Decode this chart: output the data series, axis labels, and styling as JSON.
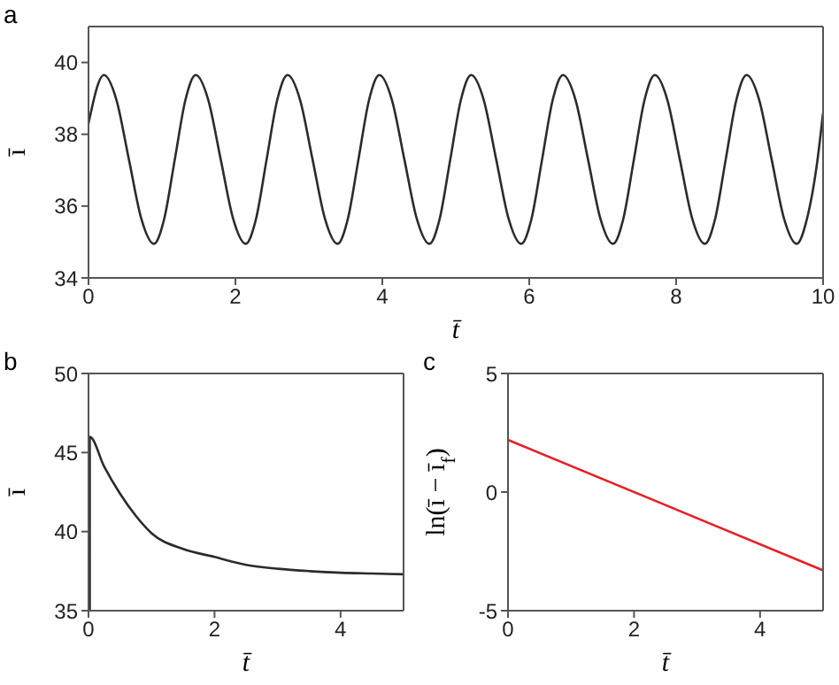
{
  "chart_data": [
    {
      "type": "line",
      "title": "a",
      "xlabel": "t̄",
      "ylabel": "ī",
      "xlim": [
        0,
        10
      ],
      "ylim": [
        34,
        41
      ],
      "xticks": [
        0,
        2,
        4,
        6,
        8,
        10
      ],
      "yticks": [
        34,
        36,
        38,
        40
      ],
      "grid": false,
      "legend": false,
      "marker": "none",
      "line_style": "solid",
      "series": [
        {
          "color": "#2b2b2b",
          "x": [
            0,
            0.21,
            0.38,
            0.55,
            0.72,
            0.89,
            1.03,
            1.175,
            1.32,
            1.46,
            1.63,
            1.8,
            1.97,
            2.14,
            2.28,
            2.425,
            2.57,
            2.71,
            2.88,
            3.05,
            3.22,
            3.39,
            3.53,
            3.675,
            3.82,
            3.96,
            4.13,
            4.3,
            4.47,
            4.64,
            4.78,
            4.925,
            5.07,
            5.21,
            5.38,
            5.55,
            5.72,
            5.89,
            6.03,
            6.175,
            6.32,
            6.46,
            6.63,
            6.8,
            6.97,
            7.14,
            7.28,
            7.425,
            7.57,
            7.71,
            7.88,
            8.05,
            8.22,
            8.39,
            8.53,
            8.675,
            8.82,
            8.96,
            9.13,
            9.3,
            9.47,
            9.64,
            9.78,
            9.925,
            10
          ],
          "values": [
            38.3,
            39.65,
            38.96,
            37.3,
            35.64,
            34.95,
            35.64,
            37.3,
            38.96,
            39.65,
            38.96,
            37.3,
            35.64,
            34.95,
            35.64,
            37.3,
            38.96,
            39.65,
            38.96,
            37.3,
            35.64,
            34.95,
            35.64,
            37.3,
            38.96,
            39.65,
            38.96,
            37.3,
            35.64,
            34.95,
            35.64,
            37.3,
            38.96,
            39.65,
            38.96,
            37.3,
            35.64,
            34.95,
            35.64,
            37.3,
            38.96,
            39.65,
            38.96,
            37.3,
            35.64,
            34.95,
            35.64,
            37.3,
            38.96,
            39.65,
            38.96,
            37.3,
            35.64,
            34.95,
            35.64,
            37.3,
            38.96,
            39.65,
            38.96,
            37.3,
            35.64,
            34.95,
            35.64,
            37.3,
            38.6
          ]
        }
      ]
    },
    {
      "type": "line",
      "title": "b",
      "xlabel": "t̄",
      "ylabel": "ī",
      "xlim": [
        0,
        5
      ],
      "ylim": [
        35,
        50
      ],
      "xticks": [
        0,
        2,
        4
      ],
      "yticks": [
        35,
        40,
        45,
        50
      ],
      "grid": false,
      "legend": false,
      "marker": "none",
      "line_style": "solid",
      "series": [
        {
          "color": "#2b2b2b",
          "x": [
            0.02,
            0.02,
            0.25,
            0.5,
            0.75,
            1,
            1.5,
            2,
            2.5,
            3,
            3.5,
            4,
            4.5,
            5
          ],
          "values": [
            35,
            46,
            44.1,
            42.4,
            41,
            39.9,
            38.9,
            38.4,
            37.9,
            37.65,
            37.5,
            37.4,
            37.35,
            37.3
          ]
        }
      ]
    },
    {
      "type": "line",
      "title": "c",
      "xlabel": "t̄",
      "ylabel": "ln(ī − ī$_{f}$)",
      "xlim": [
        0,
        5
      ],
      "ylim": [
        -5,
        5
      ],
      "xticks": [
        0,
        2,
        4
      ],
      "yticks": [
        -5,
        0,
        5
      ],
      "grid": false,
      "legend": false,
      "marker": "none",
      "line_style": "solid",
      "series": [
        {
          "color": "#e0242a",
          "x": [
            0,
            5
          ],
          "values": [
            2.2,
            -3.3
          ]
        }
      ]
    }
  ]
}
